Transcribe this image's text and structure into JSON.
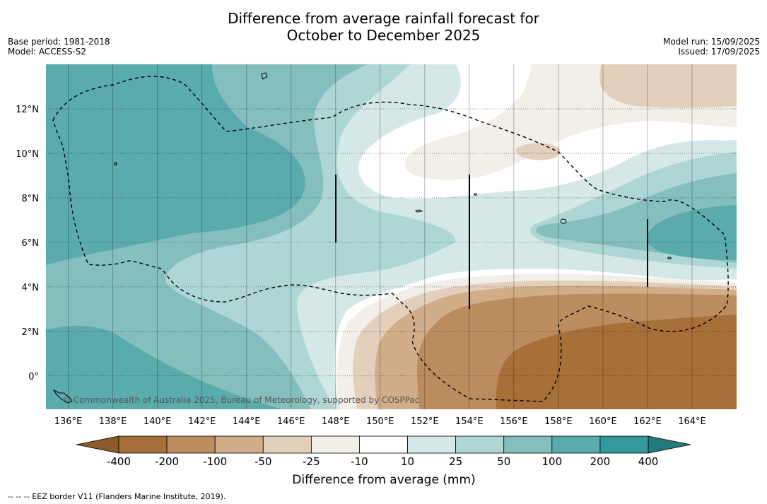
{
  "title": {
    "line1": "Difference from average rainfall forecast for",
    "line2": "October to December 2025"
  },
  "meta_left": {
    "base_period": "Base period: 1981-2018",
    "model": "Model: ACCESS-S2"
  },
  "meta_right": {
    "model_run": "Model run: 15/09/2025",
    "issued": "Issued: 17/09/2025"
  },
  "map": {
    "lon_range": [
      135,
      166
    ],
    "lat_range": [
      -1.5,
      14
    ],
    "lon_ticks": [
      {
        "value": 136,
        "label": "136°E"
      },
      {
        "value": 138,
        "label": "138°E"
      },
      {
        "value": 140,
        "label": "140°E"
      },
      {
        "value": 142,
        "label": "142°E"
      },
      {
        "value": 144,
        "label": "144°E"
      },
      {
        "value": 146,
        "label": "146°E"
      },
      {
        "value": 148,
        "label": "148°E"
      },
      {
        "value": 150,
        "label": "150°E"
      },
      {
        "value": 152,
        "label": "152°E"
      },
      {
        "value": 154,
        "label": "154°E"
      },
      {
        "value": 156,
        "label": "156°E"
      },
      {
        "value": 158,
        "label": "158°E"
      },
      {
        "value": 160,
        "label": "160°E"
      },
      {
        "value": 162,
        "label": "162°E"
      },
      {
        "value": 164,
        "label": "164°E"
      }
    ],
    "lat_ticks": [
      {
        "value": 12,
        "label": "12°N"
      },
      {
        "value": 10,
        "label": "10°N"
      },
      {
        "value": 8,
        "label": "8°N"
      },
      {
        "value": 6,
        "label": "6°N"
      },
      {
        "value": 4,
        "label": "4°N"
      },
      {
        "value": 2,
        "label": "2°N"
      },
      {
        "value": 0,
        "label": "0°"
      }
    ],
    "copyright": "© Commonwealth of Australia 2025, Bureau of Meteorology, supported by COSPPac"
  },
  "colorbar": {
    "labels": [
      "-400",
      "-200",
      "-100",
      "-50",
      "-25",
      "-10",
      "10",
      "25",
      "50",
      "100",
      "200",
      "400"
    ],
    "colors": [
      "#a87039",
      "#bd8c5e",
      "#d2ad8a",
      "#e4cfbb",
      "#f2eee8",
      "#ffffff",
      "#d5e8e8",
      "#aed6d5",
      "#84bfbe",
      "#5aabac",
      "#33999a"
    ],
    "under_color": "#8c5a2b",
    "over_color": "#237a7b",
    "title": "Difference from average (mm)"
  },
  "footnote": "-- -- -- EEZ border V11 (Flanders Marine Institute, 2019)."
}
